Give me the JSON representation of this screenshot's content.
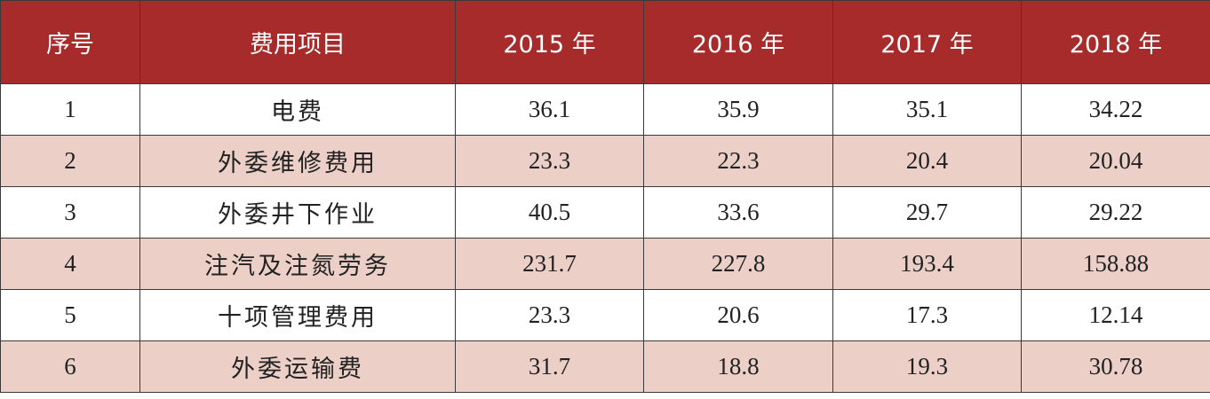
{
  "table": {
    "header": [
      "序号",
      "费用项目",
      "2015 年",
      "2016 年",
      "2017 年",
      "2018 年"
    ],
    "rows": [
      [
        1,
        "电费",
        36.1,
        35.9,
        35.1,
        34.22
      ],
      [
        2,
        "外委维修费用",
        23.3,
        22.3,
        20.4,
        20.04
      ],
      [
        3,
        "外委井下作业",
        40.5,
        33.6,
        29.7,
        29.22
      ],
      [
        4,
        "注汽及注氮劳务",
        231.7,
        227.8,
        193.4,
        158.88
      ],
      [
        5,
        "十项管理费用",
        23.3,
        20.6,
        17.3,
        12.14
      ],
      [
        6,
        "外委运输费",
        31.7,
        18.8,
        19.3,
        30.78
      ]
    ]
  }
}
